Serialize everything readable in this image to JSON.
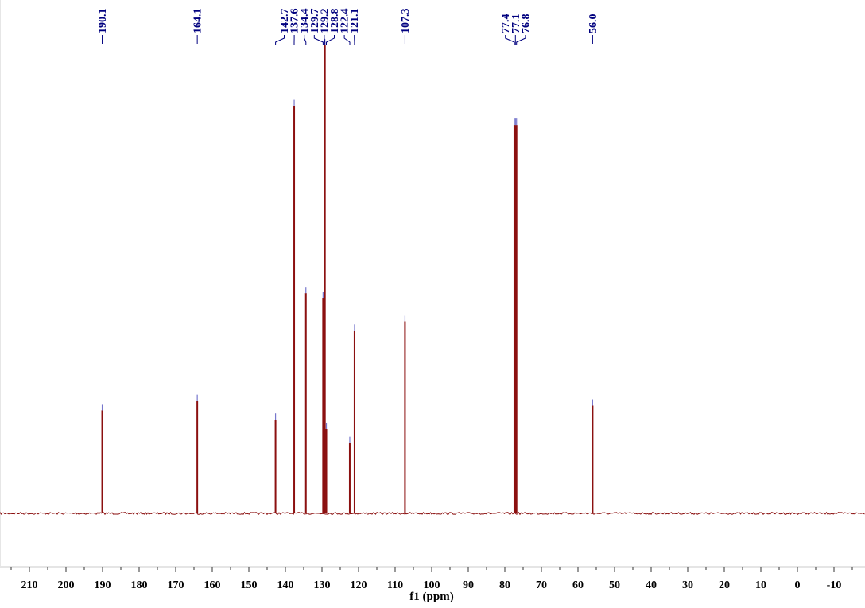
{
  "chart_data": {
    "type": "line",
    "title": "",
    "xlabel": "f1 (ppm)",
    "ylabel": "",
    "xlim": [
      216,
      -17
    ],
    "x_reversed": true,
    "grid": false,
    "x_ticks": [
      210,
      200,
      190,
      180,
      170,
      160,
      150,
      140,
      130,
      120,
      110,
      100,
      90,
      80,
      70,
      60,
      50,
      40,
      30,
      20,
      10,
      0,
      -10
    ],
    "x_tick_labels": [
      "210",
      "200",
      "190",
      "180",
      "170",
      "160",
      "150",
      "140",
      "130",
      "120",
      "110",
      "100",
      "90",
      "80",
      "70",
      "60",
      "50",
      "40",
      "30",
      "20",
      "10",
      "0",
      "-10"
    ],
    "peaks": [
      {
        "ppm": 190.1,
        "height": 0.22,
        "label": "190.1"
      },
      {
        "ppm": 164.1,
        "height": 0.24,
        "label": "164.1"
      },
      {
        "ppm": 142.7,
        "height": 0.2,
        "label": "142.7"
      },
      {
        "ppm": 137.6,
        "height": 0.87,
        "label": "137.6"
      },
      {
        "ppm": 134.4,
        "height": 0.47,
        "label": "134.4"
      },
      {
        "ppm": 129.7,
        "height": 0.46,
        "label": "129.7"
      },
      {
        "ppm": 129.2,
        "height": 1.0,
        "label": "129.2"
      },
      {
        "ppm": 128.8,
        "height": 0.18,
        "label": "128.8"
      },
      {
        "ppm": 122.4,
        "height": 0.15,
        "label": "122.4"
      },
      {
        "ppm": 121.1,
        "height": 0.39,
        "label": "121.1"
      },
      {
        "ppm": 107.3,
        "height": 0.41,
        "label": "107.3"
      },
      {
        "ppm": 77.4,
        "height": 0.83,
        "label": "77.4"
      },
      {
        "ppm": 77.1,
        "height": 0.83,
        "label": "77.1"
      },
      {
        "ppm": 76.8,
        "height": 0.83,
        "label": "76.8"
      },
      {
        "ppm": 56.0,
        "height": 0.23,
        "label": "56.0"
      }
    ],
    "colors": {
      "spectrum": "#8b1010",
      "peak_label": "#00007f",
      "peak_marker": "#7777cc",
      "axis": "#333333",
      "tick_text": "#000000"
    }
  }
}
